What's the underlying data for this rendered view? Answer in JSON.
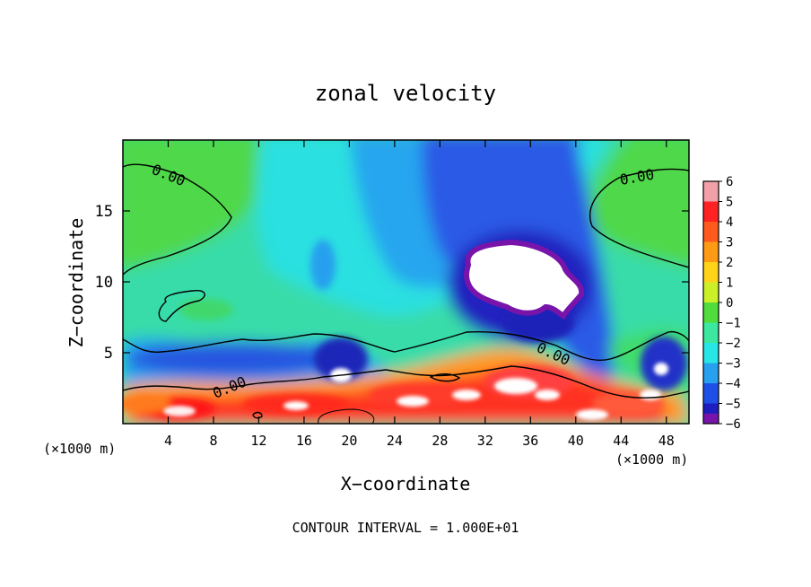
{
  "chart_data": {
    "type": "heatmap",
    "title": "zonal velocity",
    "xlabel": "X−coordinate",
    "ylabel": "Z−coordinate",
    "x_unit_left": "(×1000 m)",
    "x_unit_right": "(×1000 m)",
    "xlim": [
      0,
      50
    ],
    "ylim": [
      0,
      20
    ],
    "x_ticks": [
      4,
      8,
      12,
      16,
      20,
      24,
      28,
      32,
      36,
      40,
      44,
      48
    ],
    "y_ticks": [
      5,
      10,
      15
    ],
    "colorbar": {
      "labels": [
        "6",
        "5",
        "4",
        "3",
        "2",
        "1",
        "0",
        "−1",
        "−2",
        "−3",
        "−4",
        "−5",
        "−6"
      ],
      "colors": [
        "#f2a0a8",
        "#ff2222",
        "#ff5a1e",
        "#ff9a14",
        "#ffd41a",
        "#ccf028",
        "#50dc3c",
        "#3ce8a0",
        "#28e6e6",
        "#28a0f0",
        "#1e50e6",
        "#1e1ebe",
        "#7814aa"
      ],
      "range": [
        -6,
        6
      ]
    },
    "contour_labels": [
      "0.00",
      "0.00",
      "0.00",
      "0.00"
    ],
    "footer": "CONTOUR INTERVAL = 1.000E+01"
  }
}
